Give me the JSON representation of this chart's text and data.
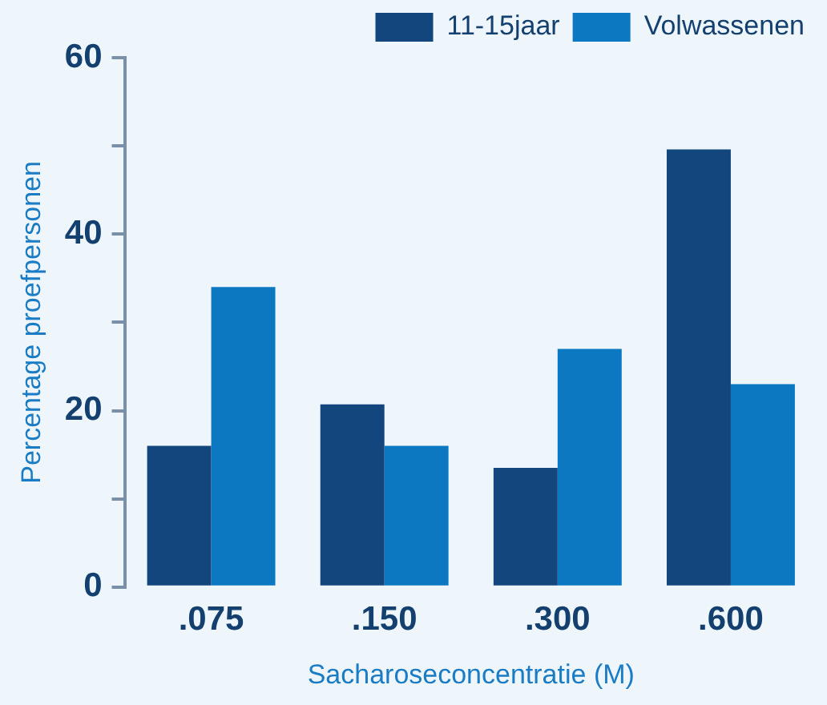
{
  "chart_data": {
    "type": "bar",
    "xlabel": "Sacharoseconcentratie (M)",
    "ylabel": "Percentage proefpersonen",
    "categories": [
      ".075",
      ".150",
      ".300",
      ".600"
    ],
    "series": [
      {
        "name": "11-15jaar",
        "color": "#13467c",
        "values": [
          16,
          20.7,
          13.5,
          49.6
        ]
      },
      {
        "name": "Volwassenen",
        "color": "#0b78c1",
        "values": [
          34,
          16,
          27,
          23
        ]
      }
    ],
    "ylim": [
      0,
      60
    ],
    "yticks": [
      0,
      {
        "value": 10,
        "label": null
      },
      20,
      {
        "value": 30,
        "label": null
      },
      40,
      {
        "value": 50,
        "label": null
      },
      60
    ],
    "grid": false,
    "legend": "top right"
  }
}
